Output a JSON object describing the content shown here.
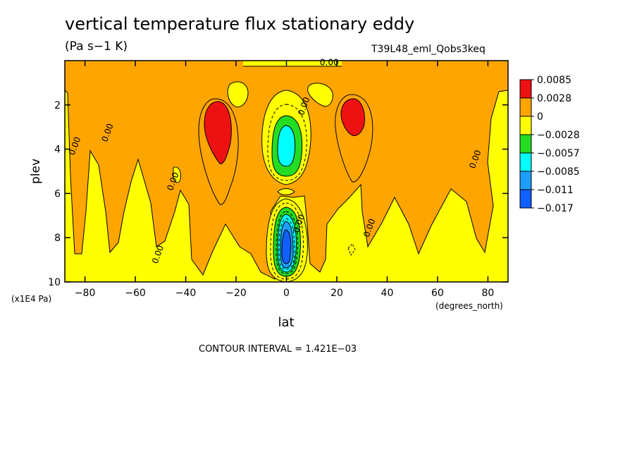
{
  "title": "vertical temperature flux stationary eddy",
  "units": "(Pa s−1 K)",
  "case_label": "T39L48_eml_Qobs3keq",
  "contour_interval_text": "CONTOUR INTERVAL = 1.421E−03",
  "colors": {
    "red": "#ee1111",
    "orange": "#ffa500",
    "yellow": "#ffff00",
    "green": "#22dd22",
    "cyan": "#00ffff",
    "lightblue": "#1e9fff",
    "blue": "#1060ff"
  },
  "chart_data": {
    "type": "contour",
    "title": "vertical temperature flux stationary eddy",
    "units": "(Pa s−1 K)",
    "x": {
      "label": "lat",
      "units": "(degrees_north)",
      "range": [
        -88,
        88
      ],
      "ticks": [
        -80,
        -60,
        -40,
        -20,
        0,
        20,
        40,
        60,
        80
      ],
      "tick_labels": [
        "−80",
        "−60",
        "−40",
        "−20",
        "0",
        "20",
        "40",
        "60",
        "80"
      ]
    },
    "y": {
      "label": "plev",
      "units": "(x1E4 Pa)",
      "range": [
        0,
        10
      ],
      "inverted": true,
      "ticks": [
        2,
        4,
        6,
        8,
        10
      ],
      "tick_labels": [
        "2",
        "4",
        "6",
        "8",
        "10"
      ]
    },
    "contour_interval": 0.001421,
    "colorbar": {
      "levels": [
        "0.0085",
        "0.0028",
        "0",
        "−0.0028",
        "−0.0057",
        "−0.0085",
        "−0.011",
        "−0.017"
      ],
      "colors": [
        "#ee1111",
        "#ffa500",
        "#ffff00",
        "#22dd22",
        "#00ffff",
        "#1e9fff",
        "#1060ff"
      ]
    },
    "contour_labels": [
      {
        "text": "0.00",
        "x": 17,
        "y": 0.2
      },
      {
        "text": "0.00",
        "x": -83,
        "y": 3.9
      },
      {
        "text": "0.00",
        "x": -70,
        "y": 3.3
      },
      {
        "text": "0.00",
        "x": -44,
        "y": 5.5
      },
      {
        "text": "0.00",
        "x": -50,
        "y": 8.8
      },
      {
        "text": "0.00",
        "x": 8,
        "y": 2.1
      },
      {
        "text": "0.00",
        "x": 6,
        "y": 7.4
      },
      {
        "text": "0.00",
        "x": 34,
        "y": 7.6
      },
      {
        "text": "0.00",
        "x": 76,
        "y": 4.5
      }
    ],
    "features": [
      {
        "name": "southern positive maximum",
        "lat": -28,
        "plev": 2.8,
        "band": "0.0028 to 0.0085"
      },
      {
        "name": "northern positive maximum",
        "lat": 28,
        "plev": 2.4,
        "band": "0.0028 to 0.0085"
      },
      {
        "name": "upper equatorial negative minimum",
        "lat": 0,
        "plev": 3.8,
        "band": "−0.0085 to −0.0057"
      },
      {
        "name": "lower equatorial negative minimum",
        "lat": 0,
        "plev": 8.5,
        "band": "−0.017 to −0.011"
      }
    ]
  }
}
